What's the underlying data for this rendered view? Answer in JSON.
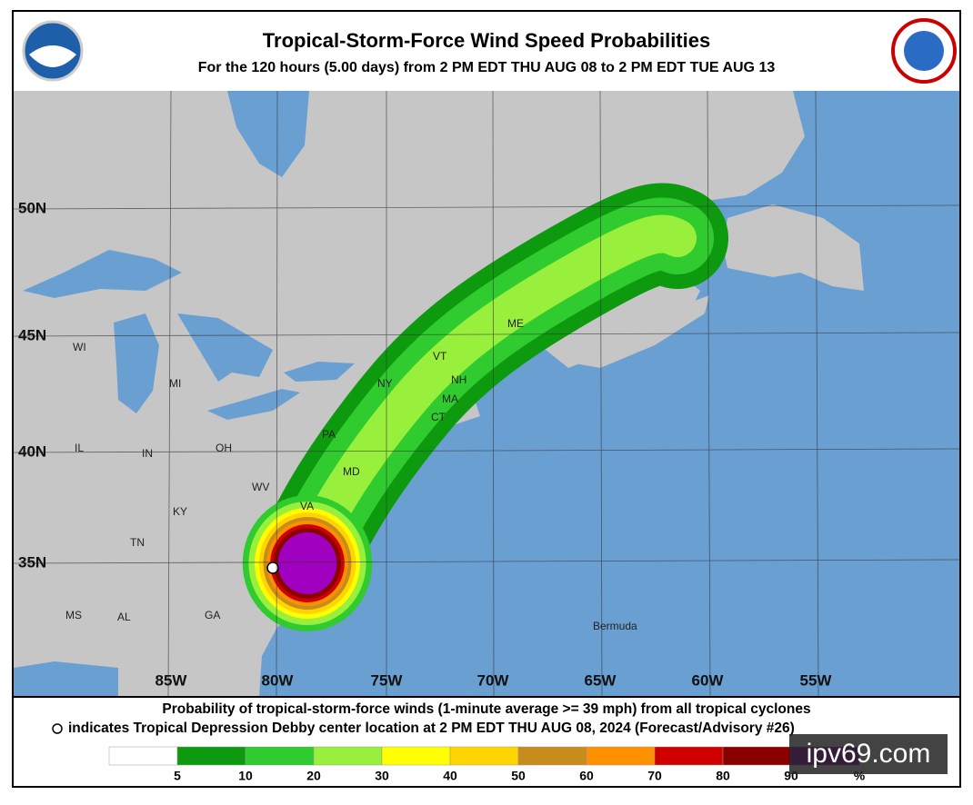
{
  "header": {
    "title": "Tropical-Storm-Force Wind Speed Probabilities",
    "subtitle": "For the 120 hours (5.00 days) from 2 PM EDT THU AUG 08 to 2 PM EDT TUE AUG 13"
  },
  "map": {
    "lat_labels": [
      "50N",
      "45N",
      "40N",
      "35N"
    ],
    "lon_labels": [
      "85W",
      "80W",
      "75W",
      "70W",
      "65W",
      "60W",
      "55W"
    ],
    "places": [
      "WI",
      "MI",
      "IL",
      "IN",
      "OH",
      "KY",
      "TN",
      "WV",
      "VA",
      "MS",
      "AL",
      "GA",
      "PA",
      "NY",
      "VT",
      "NH",
      "ME",
      "MA",
      "CT",
      "MD",
      "Bermuda"
    ],
    "land_color": "#c6c6c6",
    "water_color": "#6a9fd2"
  },
  "footer": {
    "line1": "Probability of tropical-storm-force winds (1-minute average >= 39 mph) from all tropical cyclones",
    "line2": "indicates Tropical Depression Debby center location at 2 PM EDT THU AUG 08, 2024 (Forecast/Advisory #26)"
  },
  "legend": {
    "colors": [
      "#ffffff",
      "#0e9a0e",
      "#2fcb2f",
      "#98f03c",
      "#ffff00",
      "#ffd400",
      "#c88c1c",
      "#ff9000",
      "#d00000",
      "#8a0000",
      "#a000c0"
    ],
    "ticks": [
      5,
      10,
      20,
      30,
      40,
      50,
      60,
      70,
      80,
      90
    ],
    "unit": "%"
  },
  "watermark": "ipv69.com"
}
